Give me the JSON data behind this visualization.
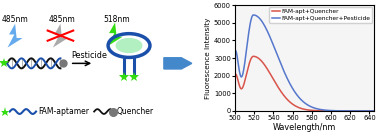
{
  "xlabel": "Wavelength/nm",
  "ylabel": "Fluorescence Intensity",
  "xlim": [
    500,
    645
  ],
  "ylim": [
    0,
    6000
  ],
  "yticks": [
    0,
    1000,
    2000,
    3000,
    4000,
    5000,
    6000
  ],
  "xticks": [
    500,
    520,
    540,
    560,
    580,
    600,
    620,
    640
  ],
  "red_label": "FAM-apt+Quencher",
  "blue_label": "FAM-apt+Quencher+Pesticide",
  "red_color": "#d9534a",
  "blue_color": "#5577cc",
  "bg_color": "#f5f5f5",
  "label_485_left": "485nm",
  "label_485_mid": "485nm",
  "label_518": "518nm",
  "arrow_label": "Pesticide",
  "legend1": "FAM-aptamer",
  "legend2": "Quencher",
  "blue_dna": "#1a4faa",
  "green_fam": "#33dd11",
  "grey_q": "#777777",
  "lightning_blue": "#66aaee",
  "lightning_grey": "#aaaaaa"
}
